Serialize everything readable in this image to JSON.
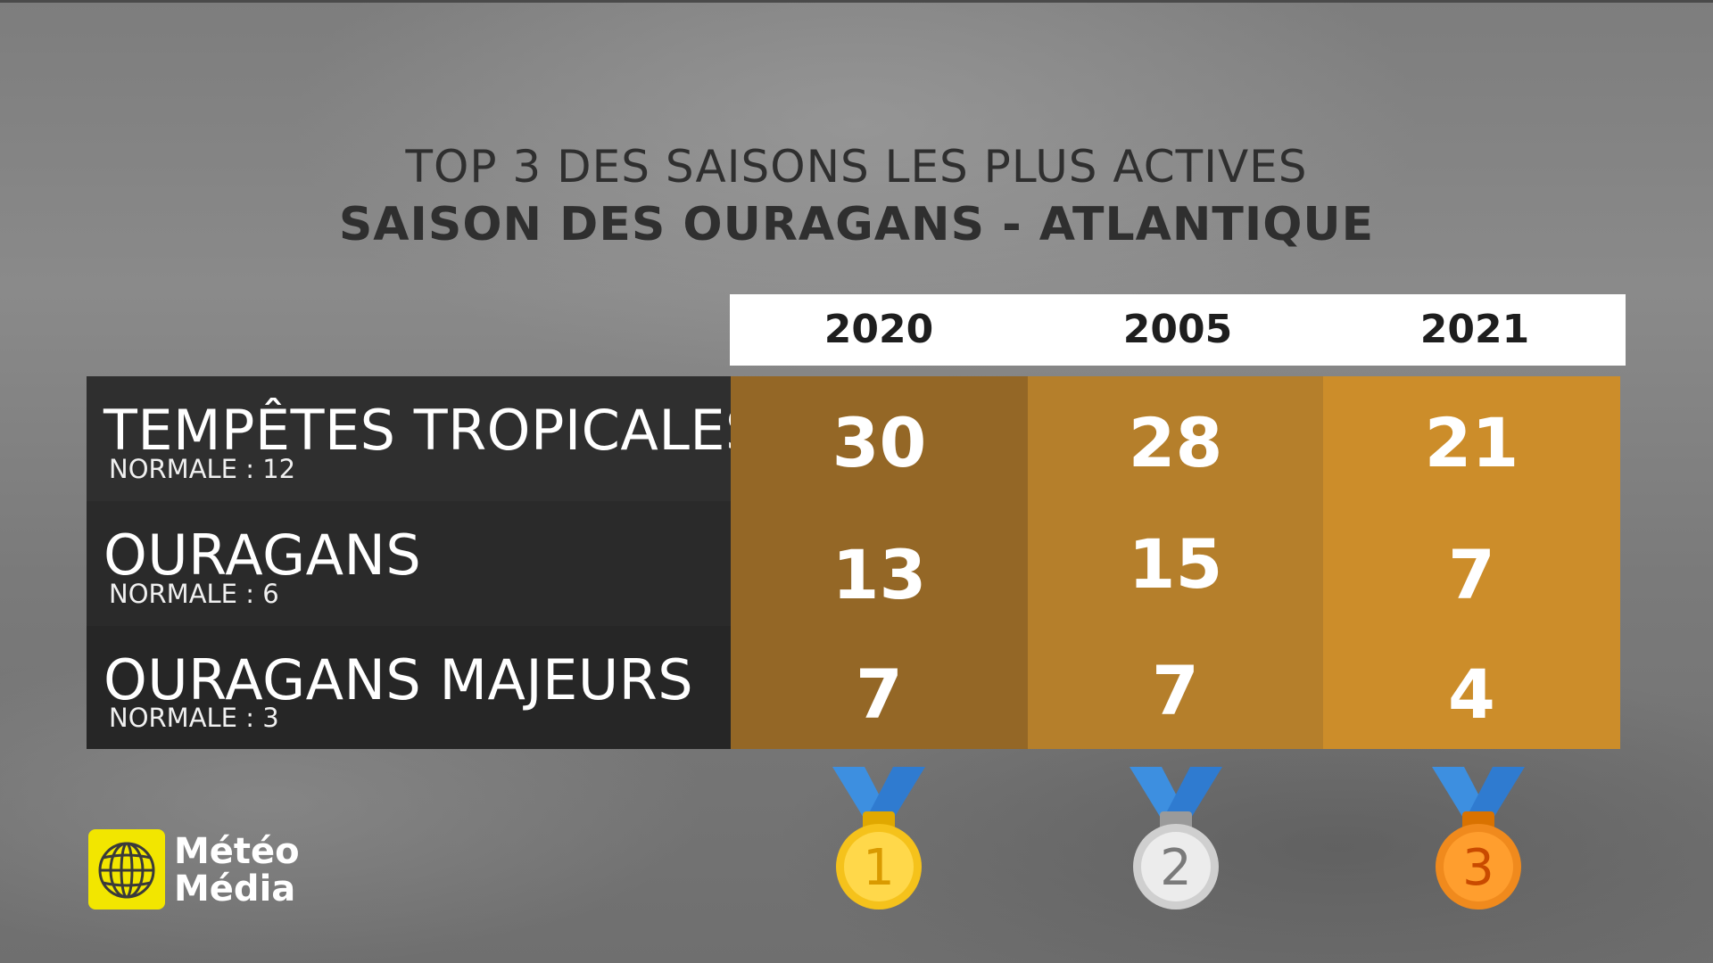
{
  "title": "TOP 3 DES SAISONS LES PLUS ACTIVES",
  "subtitle": "SAISON DES OURAGANS - ATLANTIQUE",
  "colors": {
    "col_2020": "#946726",
    "col_2005": "#b57f2b",
    "col_2021": "#cc8d2a",
    "label_bg": "#2f2f2f",
    "gold": "#f5c21b",
    "silver": "#cfcfcf",
    "bronze": "#f08a1d",
    "ribbon": "#3d8fe0"
  },
  "chart_data": {
    "type": "table",
    "columns": [
      "2020",
      "2005",
      "2021"
    ],
    "rows": [
      {
        "label": "TEMPÊTES TROPICALES",
        "normal": "NORMALE : 12",
        "values": [
          30,
          28,
          21
        ]
      },
      {
        "label": "OURAGANS",
        "normal": "NORMALE : 6",
        "values": [
          13,
          15,
          7
        ]
      },
      {
        "label": "OURAGANS MAJEURS",
        "normal": "NORMALE : 3",
        "values": [
          7,
          7,
          4
        ]
      }
    ],
    "ranks": [
      "1",
      "2",
      "3"
    ]
  },
  "medals": [
    {
      "icon": "gold-medal-icon",
      "number": "1"
    },
    {
      "icon": "silver-medal-icon",
      "number": "2"
    },
    {
      "icon": "bronze-medal-icon",
      "number": "3"
    }
  ],
  "logo": {
    "line1": "Météo",
    "line2": "Média",
    "icon": "meteomedia-globe-icon"
  }
}
